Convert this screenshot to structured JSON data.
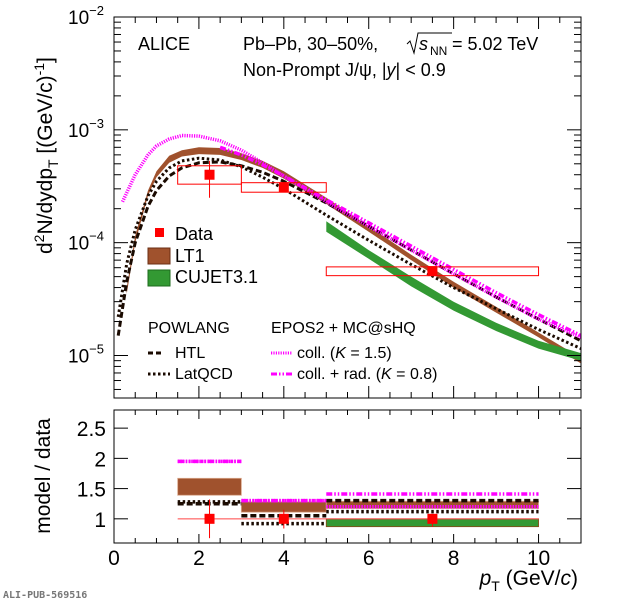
{
  "chart_data": [
    {
      "type": "line",
      "panel": "top",
      "yscale": "log",
      "xlim": [
        0,
        11
      ],
      "ylim": [
        4.2e-06,
        0.01
      ],
      "ylabel": "d²N/dydpT [(GeV/c)⁻¹]",
      "ylabel_parts": {
        "main": "d",
        "sup": "2",
        "rest": "N/dydp",
        "sub": "T",
        "units": " [(GeV/c)",
        "units_sup": "-1",
        "close": "]"
      },
      "ytick_labels": [
        {
          "value": 0.01,
          "base": "10",
          "exp": "−2"
        },
        {
          "value": 0.001,
          "base": "10",
          "exp": "−3"
        },
        {
          "value": 0.0001,
          "base": "10",
          "exp": "−4"
        },
        {
          "value": 1e-05,
          "base": "10",
          "exp": "−5"
        }
      ],
      "annotations": {
        "experiment": "ALICE",
        "system_line": "Pb–Pb, 30–50%, √s_NN = 5.02 TeV",
        "system_prefix": "Pb–Pb, 30–50%, ",
        "sqrt_s": "s",
        "sqrt_sub": "NN",
        "energy": " = 5.02 TeV",
        "particle_line": "Non-Prompt J/ψ, |y| < 0.9",
        "particle_prefix": "Non-Prompt J/ψ, |",
        "particle_y": "y",
        "particle_suffix": "| < 0.9"
      },
      "legend": {
        "placement": "left-middle",
        "entries": [
          {
            "label": "Data",
            "style": "marker",
            "color": "#ff0000"
          },
          {
            "label": "LT1",
            "style": "band",
            "color": "#a0522d"
          },
          {
            "label": "CUJET3.1",
            "style": "band",
            "color": "#339933"
          }
        ],
        "group_headers": [
          "POWLANG",
          "EPOS2 + MC@sHQ"
        ],
        "powlang_entries": [
          {
            "label": "HTL",
            "style": "dashed",
            "color": "#1a0a00"
          },
          {
            "label": "LatQCD",
            "style": "dotted",
            "color": "#1a0a00"
          }
        ],
        "epos_entries": [
          {
            "label": "coll. (K = 1.5)",
            "prefix": "coll. (",
            "k": "K",
            "suffix": " = 1.5)",
            "style": "dotted",
            "color": "#ff00ff"
          },
          {
            "label": "coll. + rad. (K = 0.8)",
            "prefix": "coll. + rad. (",
            "k": "K",
            "suffix": " = 0.8)",
            "style": "dash-dot",
            "color": "#ff00ff"
          }
        ]
      },
      "data": {
        "name": "Data",
        "color": "#ff0000",
        "points": [
          {
            "x": 2.25,
            "y": 0.0004,
            "xlo": 1.5,
            "xhi": 3.0,
            "stat_lo": 0.00025,
            "stat_hi": 0.00053,
            "syst_lo": 0.00033,
            "syst_hi": 0.00048
          },
          {
            "x": 4.0,
            "y": 0.00031,
            "xlo": 3.0,
            "xhi": 5.0,
            "stat_lo": 0.00029,
            "stat_hi": 0.00034,
            "syst_lo": 0.00028,
            "syst_hi": 0.00034
          },
          {
            "x": 7.5,
            "y": 5.6e-05,
            "xlo": 5.0,
            "xhi": 10.0,
            "stat_lo": 5.2e-05,
            "stat_hi": 6e-05,
            "syst_lo": 5.1e-05,
            "syst_hi": 6.1e-05
          }
        ]
      },
      "series": [
        {
          "name": "LT1",
          "style": "band",
          "color": "#a0522d",
          "x": [
            0.3,
            0.5,
            0.8,
            1.0,
            1.3,
            1.6,
            2.0,
            2.5,
            3.0,
            3.5,
            4.0,
            5.0,
            6.0,
            7.0,
            8.0,
            9.0,
            10.0,
            11.0
          ],
          "lo": [
            3.5e-05,
            0.0001,
            0.00026,
            0.00038,
            0.00051,
            0.00058,
            0.00061,
            0.0006,
            0.00054,
            0.00046,
            0.00037,
            0.00022,
            0.000125,
            7e-05,
            4e-05,
            2.4e-05,
            1.45e-05,
            8.5e-06
          ],
          "hi": [
            4e-05,
            0.000115,
            0.00029,
            0.00043,
            0.00059,
            0.00066,
            0.0007,
            0.00069,
            0.00062,
            0.00053,
            0.00043,
            0.00025,
            0.00014,
            7.8e-05,
            4.5e-05,
            2.7e-05,
            1.6e-05,
            9.5e-06
          ]
        },
        {
          "name": "CUJET3.1",
          "style": "band",
          "color": "#339933",
          "x": [
            5.0,
            6.0,
            7.0,
            8.0,
            9.0,
            10.0,
            11.0
          ],
          "lo": [
            0.000125,
            7.2e-05,
            4.1e-05,
            2.5e-05,
            1.65e-05,
            1.15e-05,
            9e-06
          ],
          "hi": [
            0.000155,
            8.6e-05,
            5e-05,
            3e-05,
            1.95e-05,
            1.35e-05,
            1.05e-05
          ]
        },
        {
          "name": "POWLANG HTL",
          "style": "dashed",
          "color": "#1a0a00",
          "x": [
            0.1,
            0.3,
            0.5,
            0.8,
            1.0,
            1.3,
            1.6,
            2.0,
            2.5,
            3.0,
            3.5,
            4.0,
            5.0,
            6.0,
            7.0,
            8.0,
            9.0,
            10.0,
            11.0
          ],
          "y": [
            1.5e-05,
            4.5e-05,
            0.0001,
            0.00021,
            0.00029,
            0.00039,
            0.00046,
            0.00051,
            0.00052,
            0.00048,
            0.00042,
            0.00035,
            0.000225,
            0.00014,
            8.6e-05,
            5.3e-05,
            3.3e-05,
            2.1e-05,
            1.35e-05
          ]
        },
        {
          "name": "POWLANG LatQCD",
          "style": "dotted",
          "color": "#1a0a00",
          "x": [
            0.1,
            0.3,
            0.5,
            0.8,
            1.0,
            1.3,
            1.6,
            2.0,
            2.5,
            3.0,
            3.5,
            4.0,
            5.0,
            6.0,
            7.0,
            8.0,
            9.0,
            10.0,
            11.0
          ],
          "y": [
            2.2e-05,
            6.5e-05,
            0.00013,
            0.00026,
            0.00035,
            0.00046,
            0.00053,
            0.00056,
            0.00054,
            0.00047,
            0.00038,
            0.0003,
            0.000175,
            0.000105,
            6.4e-05,
            4e-05,
            2.6e-05,
            1.7e-05,
            1.15e-05
          ]
        },
        {
          "name": "EPOS2 + MC@sHQ coll. (K = 1.5)",
          "style": "dotted",
          "color": "#ff00ff",
          "x": [
            0.2,
            0.5,
            0.8,
            1.0,
            1.3,
            1.6,
            2.0,
            2.5,
            3.0,
            3.5,
            4.0,
            5.0,
            6.0,
            7.0,
            8.0,
            9.0,
            10.0,
            11.0
          ],
          "y": [
            0.00023,
            0.0004,
            0.0006,
            0.00072,
            0.00083,
            0.00089,
            0.00088,
            0.0008,
            0.00066,
            0.00051,
            0.00039,
            0.00023,
            0.00014,
            8.6e-05,
            5.3e-05,
            3.3e-05,
            2.1e-05,
            1.45e-05
          ]
        },
        {
          "name": "EPOS2 + MC@sHQ coll. + rad. (K = 0.8)",
          "style": "dash-dot",
          "color": "#ff00ff",
          "x": [
            2.5,
            3.0,
            3.5,
            4.0,
            5.0,
            6.0,
            7.0,
            8.0,
            9.0,
            10.0,
            11.0
          ],
          "y": [
            0.0007,
            0.0006,
            0.00049,
            0.00039,
            0.00024,
            0.00015,
            9.3e-05,
            5.8e-05,
            3.6e-05,
            2.3e-05,
            1.5e-05
          ]
        }
      ]
    },
    {
      "type": "bar",
      "panel": "bottom",
      "xlim": [
        0,
        11
      ],
      "ylim": [
        0.6,
        2.8
      ],
      "xlabel": "pT (GeV/c)",
      "xlabel_parts": {
        "p": "p",
        "sub": "T",
        "units": " (GeV/",
        "c": "c",
        "close": ")"
      },
      "ylabel": "model / data",
      "xtick_labels": [
        "0",
        "2",
        "4",
        "6",
        "8",
        "10"
      ],
      "xtick_values": [
        0,
        2,
        4,
        6,
        8,
        10
      ],
      "ytick_labels": [
        "1",
        "1.5",
        "2",
        "2.5"
      ],
      "ytick_values": [
        1,
        1.5,
        2,
        2.5
      ],
      "data_ratio": [
        {
          "x": 2.25,
          "xlo": 1.5,
          "xhi": 3.0,
          "y": 1.0,
          "err_lo": 0.68,
          "err_hi": 1.32
        },
        {
          "x": 4.0,
          "xlo": 3.0,
          "xhi": 5.0,
          "y": 1.0,
          "err_lo": 0.84,
          "err_hi": 1.15
        },
        {
          "x": 7.5,
          "xlo": 5.0,
          "xhi": 10.0,
          "y": 1.0,
          "err_lo": 0.87,
          "err_hi": 1.08
        }
      ],
      "series": [
        {
          "name": "LT1",
          "style": "band",
          "color": "#a0522d",
          "bins": [
            {
              "xlo": 1.5,
              "xhi": 3.0,
              "lo": 1.39,
              "hi": 1.67
            },
            {
              "xlo": 3.0,
              "xhi": 5.0,
              "lo": 1.11,
              "hi": 1.28
            },
            {
              "xlo": 5.0,
              "xhi": 10.0,
              "lo": 1.17,
              "hi": 1.29
            }
          ]
        },
        {
          "name": "CUJET3.1",
          "style": "band",
          "color": "#339933",
          "bins": [
            {
              "xlo": 5.0,
              "xhi": 10.0,
              "lo": 0.87,
              "hi": 1.0
            }
          ]
        },
        {
          "name": "POWLANG HTL",
          "style": "dashed",
          "color": "#1a0a00",
          "bins": [
            {
              "xlo": 1.5,
              "xhi": 3.0,
              "y": 1.25
            },
            {
              "xlo": 3.0,
              "xhi": 5.0,
              "y": 1.05
            },
            {
              "xlo": 5.0,
              "xhi": 10.0,
              "y": 1.3
            }
          ]
        },
        {
          "name": "POWLANG LatQCD",
          "style": "dotted",
          "color": "#1a0a00",
          "bins": [
            {
              "xlo": 1.5,
              "xhi": 3.0,
              "y": 1.28
            },
            {
              "xlo": 3.0,
              "xhi": 5.0,
              "y": 0.92
            },
            {
              "xlo": 5.0,
              "xhi": 10.0,
              "y": 1.12
            }
          ]
        },
        {
          "name": "EPOS2 + MC@sHQ coll. (K = 1.5)",
          "style": "dotted",
          "color": "#ff00ff",
          "bins": [
            {
              "xlo": 1.5,
              "xhi": 3.0,
              "y": 1.95
            },
            {
              "xlo": 3.0,
              "xhi": 5.0,
              "y": 1.3
            },
            {
              "xlo": 5.0,
              "xhi": 10.0,
              "y": 1.2
            }
          ]
        },
        {
          "name": "EPOS2 + MC@sHQ coll. + rad. (K = 0.8)",
          "style": "dash-dot",
          "color": "#ff00ff",
          "bins": [
            {
              "xlo": 1.5,
              "xhi": 3.0,
              "y": 1.95
            },
            {
              "xlo": 3.0,
              "xhi": 5.0,
              "y": 1.3
            },
            {
              "xlo": 5.0,
              "xhi": 10.0,
              "y": 1.41
            }
          ]
        }
      ]
    }
  ],
  "watermark": "ALI-PUB-569516"
}
